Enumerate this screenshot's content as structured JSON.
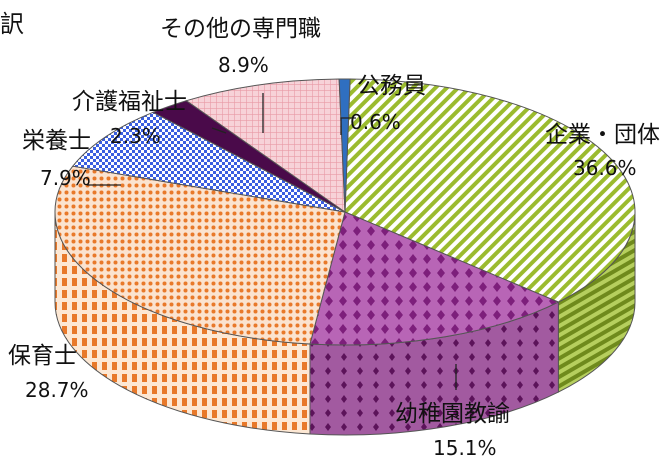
{
  "title_fragment": "訳",
  "chart_data": {
    "type": "pie",
    "title": "",
    "slices": [
      {
        "label": "企業・団体",
        "value": 36.6,
        "value_label": "36.6%",
        "color": "#9bbb2e",
        "pattern": "diagonal-stripes"
      },
      {
        "label": "幼稚園教諭",
        "value": 15.1,
        "value_label": "15.1%",
        "color": "#8e2b8c",
        "pattern": "diamonds"
      },
      {
        "label": "保育士",
        "value": 28.7,
        "value_label": "28.7%",
        "color": "#e8792a",
        "pattern": "dots"
      },
      {
        "label": "栄養士",
        "value": 7.9,
        "value_label": "7.9%",
        "color": "#3b5fe0",
        "pattern": "checks"
      },
      {
        "label": "介護福祉士",
        "value": 2.3,
        "value_label": "2.3%",
        "color": "#4a0a4a",
        "pattern": "solid"
      },
      {
        "label": "その他の専門職",
        "value": 8.9,
        "value_label": "8.9%",
        "color": "#f3b9c1",
        "pattern": "grid"
      },
      {
        "label": "公務員",
        "value": 0.6,
        "value_label": "0.6%",
        "color": "#2f6fc0",
        "pattern": "solid"
      }
    ]
  }
}
